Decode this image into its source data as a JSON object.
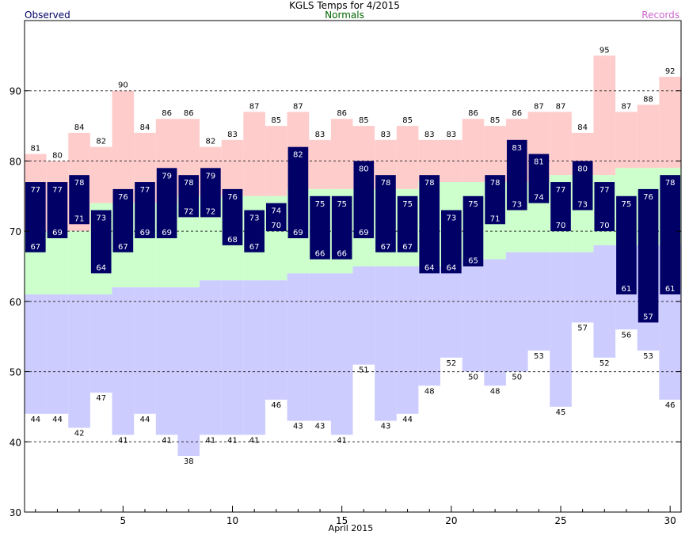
{
  "chart_data": {
    "type": "bar",
    "title": "KGLS Temps for 4/2015",
    "legend": {
      "observed": "Observed",
      "normals": "Normals",
      "records": "Records"
    },
    "xlabel": "April 2015",
    "x_ticks": [
      5,
      10,
      15,
      20,
      25,
      30
    ],
    "y_ticks": [
      30,
      40,
      50,
      60,
      70,
      80,
      90
    ],
    "ylim": [
      30,
      100
    ],
    "xlim": [
      0.5,
      30.5
    ],
    "grid": "dashed horizontal at 40, 50, 60, 70, 80, 90",
    "days": [
      1,
      2,
      3,
      4,
      5,
      6,
      7,
      8,
      9,
      10,
      11,
      12,
      13,
      14,
      15,
      16,
      17,
      18,
      19,
      20,
      21,
      22,
      23,
      24,
      25,
      26,
      27,
      28,
      29,
      30
    ],
    "observed_high": [
      77,
      77,
      78,
      73,
      76,
      77,
      79,
      78,
      79,
      76,
      73,
      74,
      82,
      75,
      75,
      80,
      78,
      75,
      78,
      73,
      75,
      78,
      83,
      81,
      77,
      80,
      77,
      75,
      76,
      78
    ],
    "observed_low": [
      67,
      69,
      71,
      64,
      67,
      69,
      69,
      72,
      72,
      68,
      67,
      70,
      69,
      66,
      66,
      69,
      67,
      67,
      64,
      64,
      65,
      71,
      73,
      74,
      70,
      73,
      70,
      61,
      57,
      61
    ],
    "record_high": [
      81,
      80,
      84,
      82,
      90,
      84,
      86,
      86,
      82,
      83,
      87,
      85,
      87,
      83,
      86,
      85,
      83,
      85,
      83,
      83,
      86,
      85,
      86,
      87,
      87,
      84,
      95,
      87,
      88,
      92
    ],
    "record_low": [
      44,
      44,
      42,
      47,
      41,
      44,
      41,
      38,
      41,
      41,
      41,
      46,
      43,
      43,
      41,
      51,
      43,
      44,
      48,
      52,
      50,
      48,
      50,
      53,
      45,
      57,
      52,
      56,
      53,
      46
    ],
    "normal_high": [
      70,
      70,
      70,
      74,
      74,
      74,
      74,
      75,
      75,
      75,
      75,
      75,
      76,
      76,
      76,
      76,
      76,
      76,
      77,
      77,
      77,
      77,
      77,
      77,
      78,
      78,
      78,
      79,
      79,
      79
    ],
    "normal_low": [
      61,
      61,
      61,
      61,
      62,
      62,
      62,
      62,
      63,
      63,
      63,
      63,
      64,
      64,
      64,
      65,
      65,
      65,
      65,
      65,
      66,
      66,
      67,
      67,
      67,
      67,
      68,
      68,
      68,
      68
    ],
    "colors": {
      "observed": "#000066",
      "observed_label": "#ffffff",
      "record_high_band": "#ffcccc",
      "normal_band": "#ccffcc",
      "record_low_band": "#ccccff",
      "grid": "#333333",
      "axis": "#000000"
    }
  }
}
